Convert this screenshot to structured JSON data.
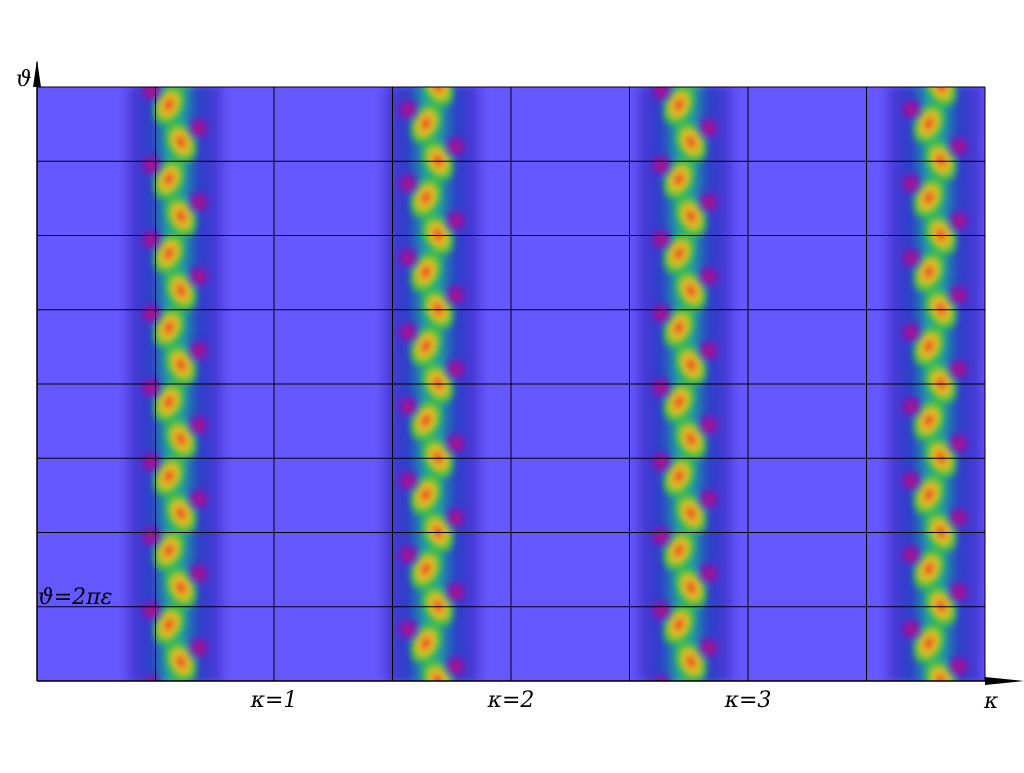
{
  "chart_data": {
    "type": "heatmap",
    "xlabel": "κ",
    "ylabel": "ϑ",
    "xlim": [
      0,
      4
    ],
    "xticks": [
      {
        "value": 1,
        "label": "κ=1"
      },
      {
        "value": 2,
        "label": "κ=2"
      },
      {
        "value": 3,
        "label": "κ=3"
      }
    ],
    "annotation": "ϑ=2πε"
  }
}
